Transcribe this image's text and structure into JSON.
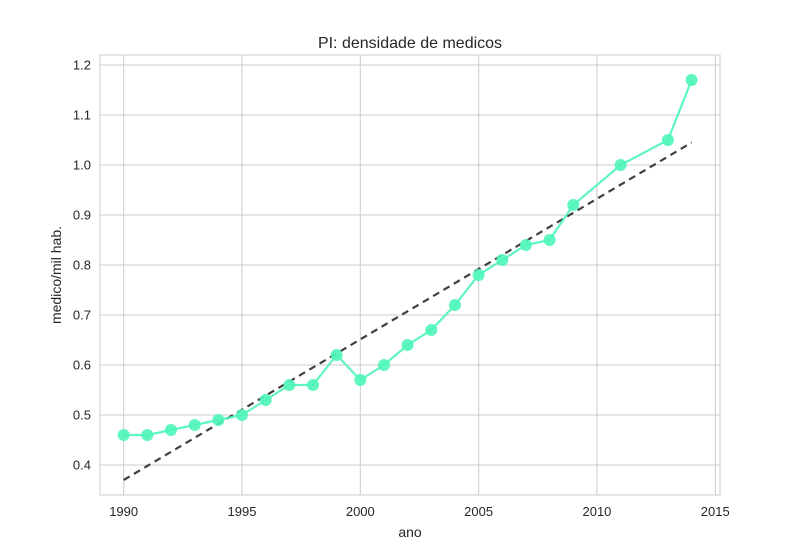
{
  "chart_data": {
    "type": "line",
    "title": "PI: densidade de medicos",
    "xlabel": "ano",
    "ylabel": "medico/mil hab.",
    "xlim": [
      1989,
      2015.2
    ],
    "ylim": [
      0.34,
      1.22
    ],
    "xticks": [
      1990,
      1995,
      2000,
      2005,
      2010,
      2015
    ],
    "yticks": [
      0.4,
      0.5,
      0.6,
      0.7,
      0.8,
      0.9,
      1.0,
      1.1,
      1.2
    ],
    "ytick_labels": [
      "0.4",
      "0.5",
      "0.6",
      "0.7",
      "0.8",
      "0.9",
      "1.0",
      "1.1",
      "1.2"
    ],
    "grid": true,
    "series": [
      {
        "kind": "line-marker",
        "color": "#4ef5b8",
        "x": [
          1990,
          1991,
          1992,
          1993,
          1994,
          1995,
          1996,
          1997,
          1998,
          1999,
          2000,
          2001,
          2002,
          2003,
          2004,
          2005,
          2006,
          2007,
          2008,
          2009,
          2011,
          2013,
          2014
        ],
        "y": [
          0.46,
          0.46,
          0.47,
          0.48,
          0.49,
          0.5,
          0.53,
          0.56,
          0.56,
          0.62,
          0.57,
          0.6,
          0.64,
          0.67,
          0.72,
          0.78,
          0.81,
          0.84,
          0.85,
          0.92,
          1.0,
          1.05,
          1.17
        ]
      },
      {
        "kind": "trend-dashed",
        "color": "#404040",
        "x": [
          1990,
          2014
        ],
        "y": [
          0.37,
          1.045
        ]
      }
    ]
  }
}
